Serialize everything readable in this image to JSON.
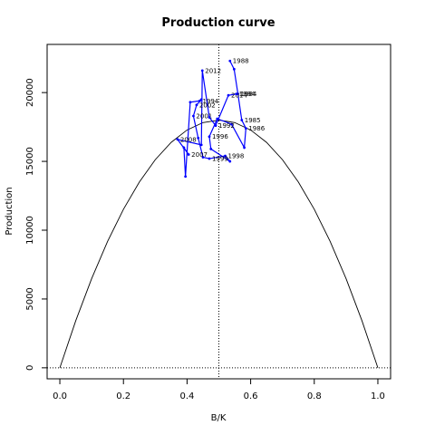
{
  "chart_data": {
    "type": "line",
    "title": "Production curve",
    "xlabel": "B/K",
    "ylabel": "Production",
    "xlim": [
      -0.04,
      1.04
    ],
    "ylim": [
      -800,
      23500
    ],
    "xticks": [
      0.0,
      0.2,
      0.4,
      0.6,
      0.8,
      1.0
    ],
    "xtick_labels": [
      "0.0",
      "0.2",
      "0.4",
      "0.6",
      "0.8",
      "1.0"
    ],
    "yticks": [
      0,
      5000,
      10000,
      15000,
      20000
    ],
    "ytick_labels": [
      "0",
      "5000",
      "10000",
      "15000",
      "20000"
    ],
    "grid": false,
    "reference_lines": {
      "x": 0.5,
      "y": 0
    },
    "series": [
      {
        "type": "curve",
        "color": "#000000",
        "x": [
          0.0,
          0.05,
          0.1,
          0.15,
          0.2,
          0.25,
          0.3,
          0.35,
          0.4,
          0.45,
          0.5,
          0.55,
          0.6,
          0.65,
          0.7,
          0.75,
          0.8,
          0.85,
          0.9,
          0.95,
          1.0
        ],
        "y": [
          0,
          3420,
          6480,
          9180,
          11520,
          13500,
          15120,
          16380,
          17280,
          17820,
          18000,
          17820,
          17280,
          16380,
          15120,
          13500,
          11520,
          9180,
          6480,
          3420,
          0
        ]
      },
      {
        "type": "path",
        "color": "#0000ff",
        "points": [
          {
            "x": 0.535,
            "y": 22300,
            "label": "1988"
          },
          {
            "x": 0.548,
            "y": 21700,
            "label": ""
          },
          {
            "x": 0.56,
            "y": 19900,
            "label": "1984"
          },
          {
            "x": 0.572,
            "y": 18000,
            "label": "1985"
          },
          {
            "x": 0.585,
            "y": 17400,
            "label": "1986"
          },
          {
            "x": 0.58,
            "y": 16000,
            "label": ""
          },
          {
            "x": 0.54,
            "y": 17700,
            "label": ""
          },
          {
            "x": 0.495,
            "y": 18100,
            "label": ""
          },
          {
            "x": 0.47,
            "y": 16800,
            "label": "1996"
          },
          {
            "x": 0.475,
            "y": 15900,
            "label": ""
          },
          {
            "x": 0.535,
            "y": 15000,
            "label": ""
          },
          {
            "x": 0.52,
            "y": 15400,
            "label": "1998"
          },
          {
            "x": 0.47,
            "y": 15200,
            "label": "1999"
          },
          {
            "x": 0.45,
            "y": 15300,
            "label": ""
          },
          {
            "x": 0.435,
            "y": 16700,
            "label": ""
          },
          {
            "x": 0.42,
            "y": 18300,
            "label": "2001"
          },
          {
            "x": 0.43,
            "y": 19100,
            "label": "2002"
          },
          {
            "x": 0.445,
            "y": 19500,
            "label": ""
          },
          {
            "x": 0.44,
            "y": 19400,
            "label": "1994"
          },
          {
            "x": 0.41,
            "y": 19300,
            "label": ""
          },
          {
            "x": 0.395,
            "y": 13900,
            "label": ""
          },
          {
            "x": 0.39,
            "y": 16000,
            "label": ""
          },
          {
            "x": 0.405,
            "y": 15500,
            "label": "2007"
          },
          {
            "x": 0.37,
            "y": 16600,
            "label": "2008"
          },
          {
            "x": 0.445,
            "y": 16200,
            "label": ""
          },
          {
            "x": 0.448,
            "y": 21600,
            "label": "2012"
          },
          {
            "x": 0.47,
            "y": 18200,
            "label": ""
          },
          {
            "x": 0.49,
            "y": 17600,
            "label": "1992"
          },
          {
            "x": 0.53,
            "y": 19800,
            "label": "2014"
          },
          {
            "x": 0.555,
            "y": 19900,
            "label": "1984"
          }
        ]
      }
    ]
  }
}
